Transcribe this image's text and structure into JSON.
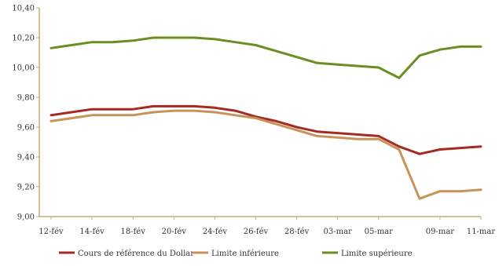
{
  "chart_data": {
    "type": "line",
    "x": [
      "12-fév",
      "13-fév",
      "14-fév",
      "15-fév",
      "18-fév",
      "19-fév",
      "20-fév",
      "21-fév",
      "24-fév",
      "25-fév",
      "26-fév",
      "27-fév",
      "28-fév",
      "01-mar",
      "03-mar",
      "04-mar",
      "05-mar",
      "06-mar",
      "07-mar",
      "09-mar",
      "10-mar",
      "11-mar"
    ],
    "x_tick_labels": [
      "12-fév",
      "14-fév",
      "18-fév",
      "20-fév",
      "24-fév",
      "26-fév",
      "28-fév",
      "03-mar",
      "05-mar",
      "09-mar",
      "11-mar"
    ],
    "series": [
      {
        "name": "Cours de référence du Dollar",
        "color": "#a52a22",
        "values": [
          9.68,
          9.7,
          9.72,
          9.72,
          9.72,
          9.74,
          9.74,
          9.74,
          9.73,
          9.71,
          9.67,
          9.64,
          9.6,
          9.57,
          9.56,
          9.55,
          9.54,
          9.47,
          9.42,
          9.45,
          9.46,
          9.47
        ]
      },
      {
        "name": "Limite inférieure",
        "color": "#c8935a",
        "values": [
          9.64,
          9.66,
          9.68,
          9.68,
          9.68,
          9.7,
          9.71,
          9.71,
          9.7,
          9.68,
          9.66,
          9.62,
          9.58,
          9.54,
          9.53,
          9.52,
          9.52,
          9.45,
          9.12,
          9.17,
          9.17,
          9.18
        ]
      },
      {
        "name": "Limite supérieure",
        "color": "#6b8e23",
        "values": [
          10.13,
          10.15,
          10.17,
          10.17,
          10.18,
          10.2,
          10.2,
          10.2,
          10.19,
          10.17,
          10.15,
          10.11,
          10.07,
          10.03,
          10.02,
          10.01,
          10.0,
          9.93,
          10.08,
          10.12,
          10.14,
          10.14
        ]
      }
    ],
    "y_tick_labels": [
      "9,00",
      "9,20",
      "9,40",
      "9,60",
      "9,80",
      "10,00",
      "10,20",
      "10,40"
    ],
    "ylim": [
      9.0,
      10.4
    ],
    "title": "",
    "xlabel": "",
    "ylabel": "",
    "grid": false,
    "legend": "bottom",
    "axis_color": "#c0b070"
  }
}
